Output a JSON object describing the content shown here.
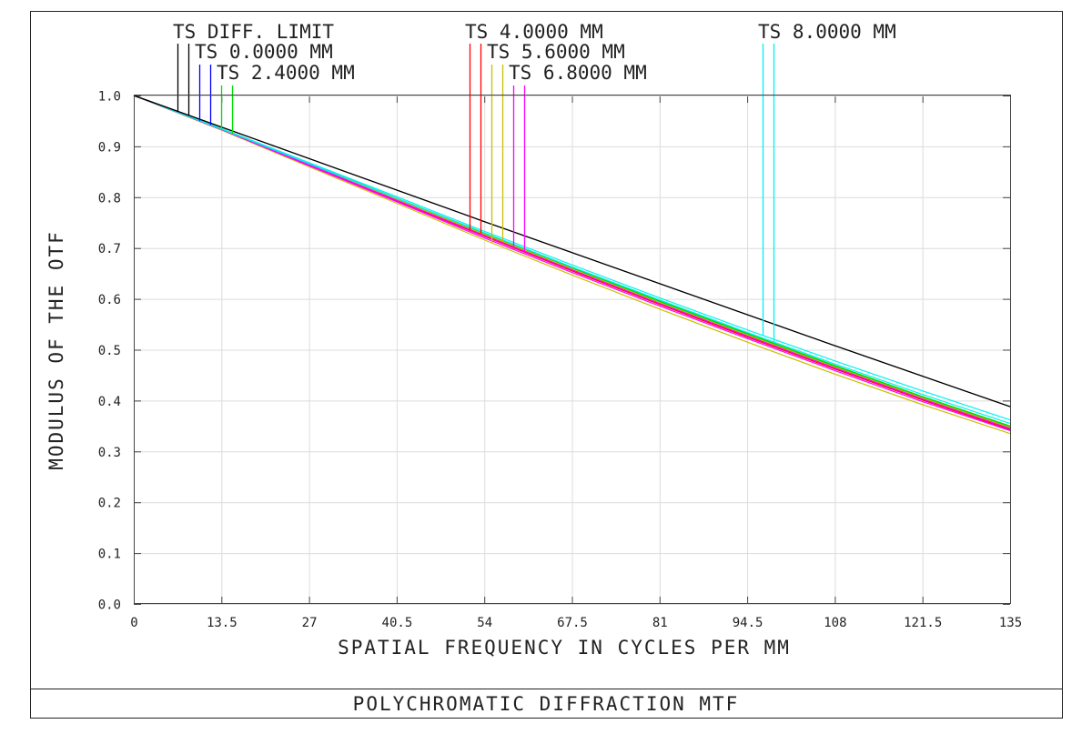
{
  "chart_data": {
    "type": "line",
    "title": "POLYCHROMATIC DIFFRACTION MTF",
    "xlabel": "SPATIAL FREQUENCY IN CYCLES PER MM",
    "ylabel": "MODULUS OF THE OTF",
    "xlim": [
      0,
      135
    ],
    "ylim": [
      0,
      1
    ],
    "grid": true,
    "x_ticks": [
      "0",
      "13.5",
      "27",
      "40.5",
      "54",
      "67.5",
      "81",
      "94.5",
      "108",
      "121.5",
      "135"
    ],
    "y_ticks": [
      "0.0",
      "0.1",
      "0.2",
      "0.3",
      "0.4",
      "0.5",
      "0.6",
      "0.7",
      "0.8",
      "0.9",
      "1.0"
    ],
    "x": [
      0,
      13.5,
      27,
      40.5,
      54,
      67.5,
      81,
      94.5,
      108,
      121.5,
      135
    ],
    "legend": [
      {
        "label": "TS DIFF. LIMIT",
        "color": "#000000"
      },
      {
        "label": "TS 0.0000 MM",
        "color": "#0000ff"
      },
      {
        "label": "TS 2.4000 MM",
        "color": "#00e000"
      },
      {
        "label": "TS 4.0000 MM",
        "color": "#ff0000"
      },
      {
        "label": "TS 5.6000 MM",
        "color": "#c8c000"
      },
      {
        "label": "TS 6.8000 MM",
        "color": "#ff00ff"
      },
      {
        "label": "TS 8.0000 MM",
        "color": "#00f0f0"
      }
    ],
    "series": [
      {
        "name": "DIFF. LIMIT T",
        "color": "#000000",
        "values": [
          1,
          0.938,
          0.876,
          0.814,
          0.752,
          0.691,
          0.63,
          0.569,
          0.508,
          0.448,
          0.388
        ]
      },
      {
        "name": "DIFF. LIMIT S",
        "color": "#000000",
        "values": [
          1,
          0.938,
          0.876,
          0.814,
          0.752,
          0.691,
          0.63,
          0.569,
          0.508,
          0.448,
          0.388
        ]
      },
      {
        "name": "0.0000 MM T",
        "color": "#0000ff",
        "values": [
          1,
          0.934,
          0.865,
          0.796,
          0.727,
          0.66,
          0.594,
          0.53,
          0.467,
          0.406,
          0.348
        ]
      },
      {
        "name": "0.0000 MM S",
        "color": "#0000ff",
        "values": [
          1,
          0.934,
          0.865,
          0.796,
          0.727,
          0.66,
          0.594,
          0.53,
          0.467,
          0.406,
          0.348
        ]
      },
      {
        "name": "2.4000 MM T",
        "color": "#00e000",
        "values": [
          1,
          0.935,
          0.867,
          0.798,
          0.729,
          0.662,
          0.596,
          0.532,
          0.469,
          0.408,
          0.35
        ]
      },
      {
        "name": "2.4000 MM S",
        "color": "#00e000",
        "values": [
          1,
          0.934,
          0.866,
          0.797,
          0.728,
          0.661,
          0.595,
          0.531,
          0.468,
          0.407,
          0.349
        ]
      },
      {
        "name": "4.0000 MM T",
        "color": "#ff0000",
        "values": [
          1,
          0.933,
          0.863,
          0.793,
          0.723,
          0.655,
          0.589,
          0.525,
          0.462,
          0.401,
          0.343
        ]
      },
      {
        "name": "4.0000 MM S",
        "color": "#ff0000",
        "values": [
          1,
          0.934,
          0.865,
          0.795,
          0.726,
          0.658,
          0.592,
          0.528,
          0.465,
          0.404,
          0.346
        ]
      },
      {
        "name": "5.6000 MM T",
        "color": "#c8c000",
        "values": [
          1,
          0.932,
          0.86,
          0.788,
          0.716,
          0.647,
          0.58,
          0.515,
          0.452,
          0.392,
          0.335
        ]
      },
      {
        "name": "5.6000 MM S",
        "color": "#c8c000",
        "values": [
          1,
          0.934,
          0.865,
          0.796,
          0.727,
          0.659,
          0.593,
          0.529,
          0.466,
          0.405,
          0.347
        ]
      },
      {
        "name": "6.8000 MM T",
        "color": "#ff00ff",
        "values": [
          1,
          0.933,
          0.862,
          0.791,
          0.72,
          0.652,
          0.586,
          0.522,
          0.459,
          0.398,
          0.341
        ]
      },
      {
        "name": "6.8000 MM S",
        "color": "#ff00ff",
        "values": [
          1,
          0.934,
          0.864,
          0.794,
          0.724,
          0.657,
          0.591,
          0.527,
          0.464,
          0.403,
          0.345
        ]
      },
      {
        "name": "8.0000 MM T",
        "color": "#00f0f0",
        "values": [
          1,
          0.935,
          0.868,
          0.801,
          0.733,
          0.667,
          0.602,
          0.539,
          0.478,
          0.419,
          0.362
        ]
      },
      {
        "name": "8.0000 MM S",
        "color": "#00f0f0",
        "values": [
          1,
          0.934,
          0.866,
          0.798,
          0.73,
          0.663,
          0.598,
          0.534,
          0.472,
          0.412,
          0.355
        ]
      }
    ]
  }
}
